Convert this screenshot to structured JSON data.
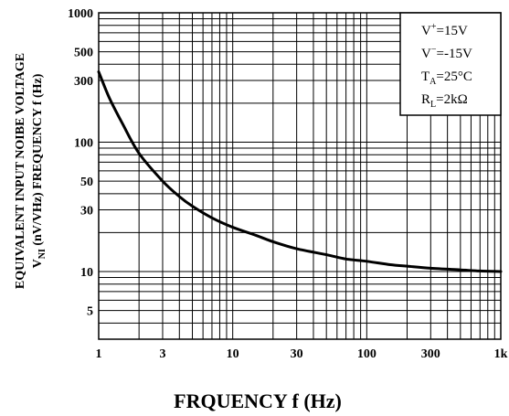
{
  "chart_data": {
    "type": "line",
    "title": "",
    "xlabel": "FRQUENCY f (Hz)",
    "ylabel_line1": "EQUIVALENT INPUT NOIBE VOLTAGE",
    "ylabel_line2_main": "V",
    "ylabel_line2_sub": "NI",
    "ylabel_line2_rest": " (nV/VHz) FREQUENCY f (Hz)",
    "x_scale": "log",
    "y_scale": "log",
    "xlim": [
      1,
      1000
    ],
    "ylim": [
      3,
      1000
    ],
    "grid": true,
    "legend_position": "top-right",
    "x_ticks": [
      {
        "value": 1,
        "label": "1"
      },
      {
        "value": 3,
        "label": "3"
      },
      {
        "value": 10,
        "label": "10"
      },
      {
        "value": 30,
        "label": "30"
      },
      {
        "value": 100,
        "label": "100"
      },
      {
        "value": 300,
        "label": "300"
      },
      {
        "value": 1000,
        "label": "1k"
      }
    ],
    "y_ticks": [
      {
        "value": 5,
        "label": "5"
      },
      {
        "value": 10,
        "label": "10"
      },
      {
        "value": 30,
        "label": "30"
      },
      {
        "value": 50,
        "label": "50"
      },
      {
        "value": 100,
        "label": "100"
      },
      {
        "value": 300,
        "label": "300"
      },
      {
        "value": 500,
        "label": "500"
      },
      {
        "value": 1000,
        "label": "1000"
      }
    ],
    "conditions": [
      {
        "main": "V",
        "sup": "+",
        "sub": "",
        "rest": "=15V"
      },
      {
        "main": "V",
        "sup": "−",
        "sub": "",
        "rest": "=-15V"
      },
      {
        "main": "T",
        "sup": "",
        "sub": "A",
        "rest": "=25°C"
      },
      {
        "main": "R",
        "sup": "",
        "sub": "L",
        "rest": "=2kΩ"
      }
    ],
    "series": [
      {
        "x": [
          1,
          1.2,
          1.5,
          2,
          3,
          4,
          5,
          7,
          10,
          15,
          20,
          30,
          50,
          70,
          100,
          150,
          200,
          300,
          500,
          700,
          1000
        ],
        "y": [
          350,
          220,
          140,
          82,
          50,
          38,
          32,
          26,
          22,
          19,
          17,
          15,
          13.5,
          12.5,
          12,
          11.3,
          11,
          10.6,
          10.3,
          10.1,
          10
        ]
      }
    ],
    "colors": {
      "line": "#000000",
      "grid": "#000000",
      "background": "#ffffff"
    }
  }
}
